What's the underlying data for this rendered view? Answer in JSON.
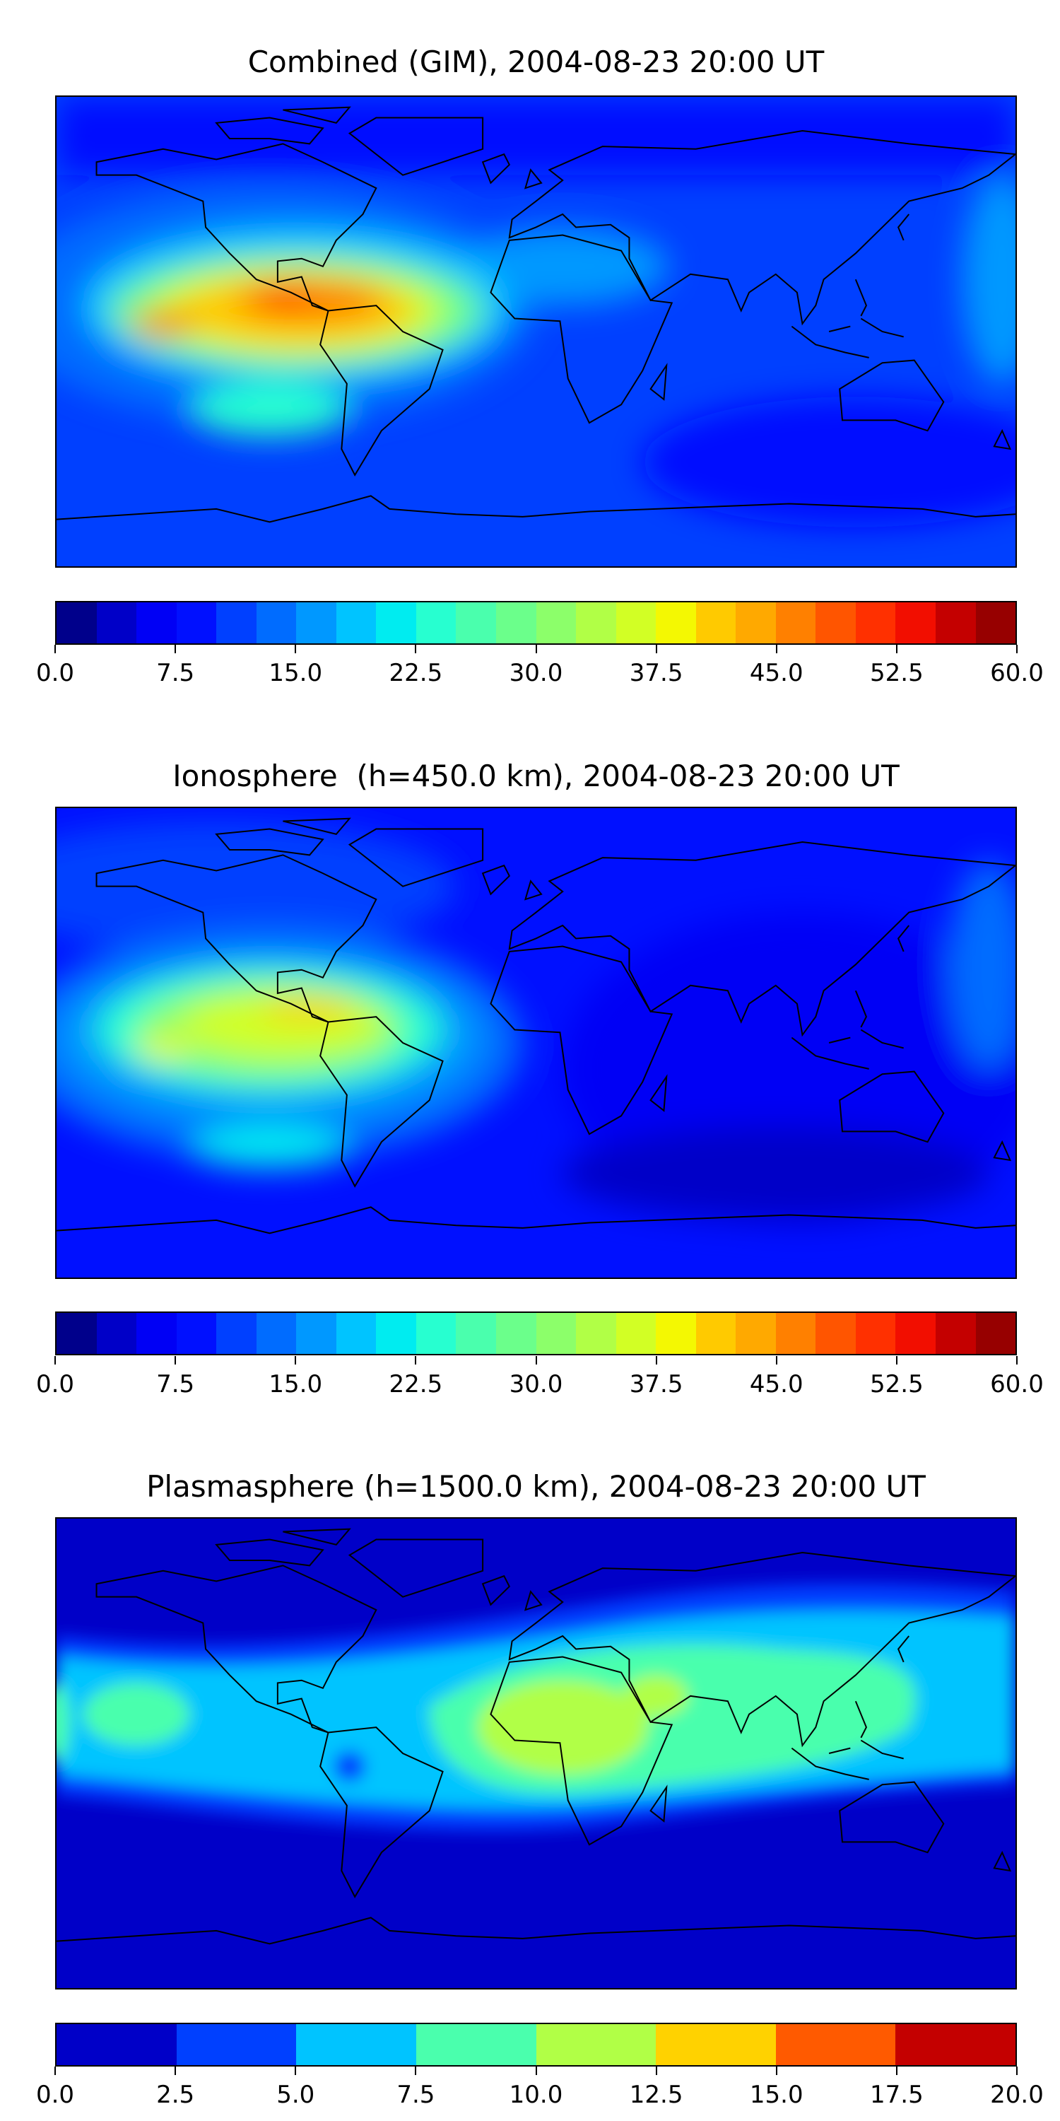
{
  "chart_data": [
    {
      "type": "heatmap",
      "title": "Combined (GIM), 2004-08-23 20:00 UT",
      "projection": "plate-carree world map with coastlines",
      "colorbar": {
        "range": [
          0,
          60
        ],
        "levels": 24,
        "tick_labels": [
          "0.0",
          "7.5",
          "15.0",
          "22.5",
          "30.0",
          "37.5",
          "45.0",
          "52.5",
          "60.0"
        ],
        "colors": [
          "#00008b",
          "#0000c8",
          "#0000f5",
          "#0010ff",
          "#0040ff",
          "#006cff",
          "#0098ff",
          "#00c4ff",
          "#00ecf0",
          "#27ffd0",
          "#4affad",
          "#6bff8b",
          "#8cff6a",
          "#b1ff46",
          "#d2ff25",
          "#f4f802",
          "#ffca00",
          "#ffa900",
          "#ff8000",
          "#ff5500",
          "#ff3000",
          "#f20e00",
          "#c40000",
          "#970000"
        ]
      },
      "features": {
        "background_level": 10,
        "peak_value_approx": 50,
        "peak_location": "Caribbean / northern South America"
      }
    },
    {
      "type": "heatmap",
      "title": "Ionosphere  (h=450.0 km), 2004-08-23 20:00 UT",
      "projection": "plate-carree world map with coastlines",
      "colorbar": {
        "range": [
          0,
          60
        ],
        "levels": 24,
        "tick_labels": [
          "0.0",
          "7.5",
          "15.0",
          "22.5",
          "30.0",
          "37.5",
          "45.0",
          "52.5",
          "60.0"
        ],
        "colors": [
          "#00008b",
          "#0000c8",
          "#0000f5",
          "#0010ff",
          "#0040ff",
          "#006cff",
          "#0098ff",
          "#00c4ff",
          "#00ecf0",
          "#27ffd0",
          "#4affad",
          "#6bff8b",
          "#8cff6a",
          "#b1ff46",
          "#d2ff25",
          "#f4f802",
          "#ffca00",
          "#ffa900",
          "#ff8000",
          "#ff5500",
          "#ff3000",
          "#f20e00",
          "#c40000",
          "#970000"
        ]
      },
      "features": {
        "background_level": 7,
        "peak_value_approx": 42,
        "peak_location": "Caribbean / eastern Pacific"
      }
    },
    {
      "type": "heatmap",
      "title": "Plasmasphere (h=1500.0 km), 2004-08-23 20:00 UT",
      "projection": "plate-carree world map with coastlines",
      "colorbar": {
        "range": [
          0,
          20
        ],
        "levels": 8,
        "tick_labels": [
          "0.0",
          "2.5",
          "5.0",
          "7.5",
          "10.0",
          "12.5",
          "15.0",
          "17.5",
          "20.0"
        ],
        "colors": [
          "#0000c8",
          "#0040ff",
          "#00c4ff",
          "#4affad",
          "#b1ff46",
          "#ffd200",
          "#ff5a00",
          "#c40000"
        ]
      },
      "features": {
        "background_level": 1.5,
        "peak_value_approx": 11,
        "peak_location": "Africa / Arabia"
      }
    }
  ]
}
